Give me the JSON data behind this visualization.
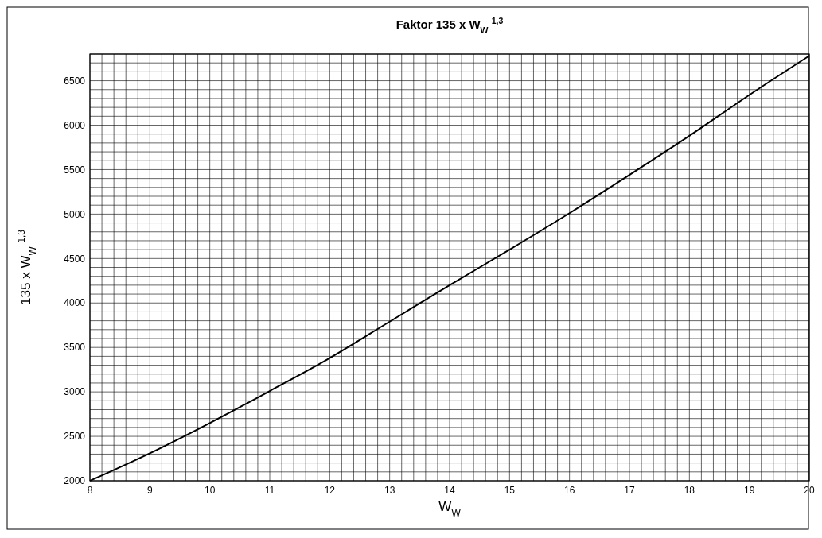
{
  "chart_data": {
    "type": "line",
    "title": "Faktor 135 x W$_{W}$ $^{1,3}$",
    "xlabel": "W$_{W}$",
    "ylabel": "135 x W$_{W}$ $^{1,3}$",
    "x": [
      8,
      9,
      10,
      11,
      12,
      13,
      14,
      15,
      16,
      17,
      18,
      19,
      20
    ],
    "series": [
      {
        "color": "#000000",
        "values": [
          2000,
          2310,
          2650,
          3010,
          3380,
          3790,
          4200,
          4600,
          5010,
          5440,
          5880,
          6340,
          6780
        ]
      }
    ],
    "xlim": [
      8,
      20
    ],
    "ylim": [
      2000,
      6800
    ],
    "xticks": [
      8,
      9,
      10,
      11,
      12,
      13,
      14,
      15,
      16,
      17,
      18,
      19,
      20
    ],
    "yticks": [
      2000,
      2500,
      3000,
      3500,
      4000,
      4500,
      5000,
      5500,
      6000,
      6500
    ],
    "grid": true,
    "marker": "none",
    "line_style": "solid"
  }
}
